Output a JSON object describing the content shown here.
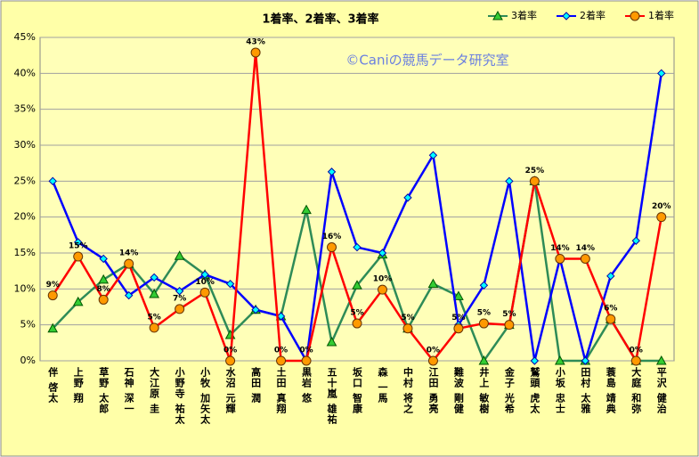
{
  "chart_data": {
    "type": "line",
    "title": "1着率、2着率、3着率",
    "annotation": "©Caniの競馬データ研究室",
    "categories": [
      "伴 啓太",
      "上野 翔",
      "草野 太郎",
      "石神 深一",
      "大江原 圭",
      "小野寺 祐太",
      "小牧 加矢太",
      "水沼 元輝",
      "高田 潤",
      "土田 真翔",
      "黒岩 悠",
      "五十嵐 雄祐",
      "坂口 智康",
      "森 一馬",
      "中村 将之",
      "江田 勇亮",
      "難波 剛健",
      "井上 敏樹",
      "金子 光希",
      "鷲頭 虎太",
      "小坂 忠士",
      "田村 太雅",
      "蓑島 靖典",
      "大庭 和弥",
      "平沢 健治"
    ],
    "series": [
      {
        "name": "3着率",
        "color": "#2e8b57",
        "marker": "triangle",
        "values": [
          4.5,
          8.2,
          11.3,
          13.5,
          9.3,
          14.6,
          12,
          3.6,
          7.1,
          6.2,
          21,
          2.6,
          10.5,
          14.8,
          4.5,
          10.7,
          9,
          0,
          5,
          25,
          0,
          0,
          5.8,
          0,
          0
        ]
      },
      {
        "name": "2着率",
        "color": "#0000ff",
        "marker": "diamond",
        "values": [
          25,
          16.5,
          14.2,
          9.1,
          11.6,
          9.7,
          12,
          10.7,
          7.1,
          6.2,
          0,
          26.3,
          15.8,
          15,
          22.7,
          28.6,
          5,
          10.5,
          25,
          0,
          14.2,
          0,
          11.8,
          16.7,
          40
        ]
      },
      {
        "name": "1着率",
        "color": "#ff0000",
        "marker": "circle",
        "values": [
          9.1,
          14.5,
          8.5,
          13.5,
          4.6,
          7.2,
          9.5,
          0,
          42.9,
          0,
          0,
          15.8,
          5.2,
          9.9,
          4.5,
          0,
          4.5,
          5.2,
          5,
          25,
          14.2,
          14.2,
          5.8,
          0,
          20
        ],
        "value_labels": [
          "9%",
          "15%",
          "8%",
          "14%",
          "5%",
          "7%",
          "10%",
          "0%",
          "43%",
          "0%",
          "0%",
          "16%",
          "5%",
          "10%",
          "5%",
          "0%",
          "5%",
          "5%",
          "5%",
          "25%",
          "14%",
          "14%",
          "6%",
          "0%",
          "20%"
        ]
      }
    ],
    "ylim": [
      0,
      45
    ],
    "yticks": [
      {
        "value": 0,
        "label": "0%"
      },
      {
        "value": 5,
        "label": "5%"
      },
      {
        "value": 10,
        "label": "10%"
      },
      {
        "value": 15,
        "label": "15%"
      },
      {
        "value": 20,
        "label": "20%"
      },
      {
        "value": 25,
        "label": "25%"
      },
      {
        "value": 30,
        "label": "30%"
      },
      {
        "value": 35,
        "label": "35%"
      },
      {
        "value": 40,
        "label": "40%"
      },
      {
        "value": 45,
        "label": "45%"
      }
    ],
    "grid": true,
    "legend": "top-right"
  }
}
